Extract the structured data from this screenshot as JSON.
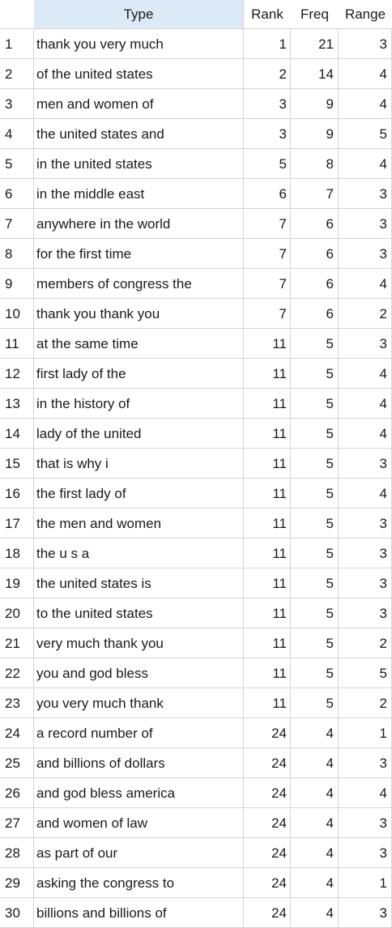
{
  "table": {
    "columns": {
      "index": "",
      "type": "Type",
      "rank": "Rank",
      "freq": "Freq",
      "range": "Range"
    },
    "sorted_header_bg": "#dce9f7",
    "rows": [
      {
        "n": "1",
        "type": "thank you very much",
        "rank": "1",
        "freq": "21",
        "range": "3"
      },
      {
        "n": "2",
        "type": "of the united states",
        "rank": "2",
        "freq": "14",
        "range": "4"
      },
      {
        "n": "3",
        "type": "men and women of",
        "rank": "3",
        "freq": "9",
        "range": "4"
      },
      {
        "n": "4",
        "type": "the united states and",
        "rank": "3",
        "freq": "9",
        "range": "5"
      },
      {
        "n": "5",
        "type": "in the united states",
        "rank": "5",
        "freq": "8",
        "range": "4"
      },
      {
        "n": "6",
        "type": "in the middle east",
        "rank": "6",
        "freq": "7",
        "range": "3"
      },
      {
        "n": "7",
        "type": "anywhere in the world",
        "rank": "7",
        "freq": "6",
        "range": "3"
      },
      {
        "n": "8",
        "type": "for the first time",
        "rank": "7",
        "freq": "6",
        "range": "3"
      },
      {
        "n": "9",
        "type": "members of congress the",
        "rank": "7",
        "freq": "6",
        "range": "4"
      },
      {
        "n": "10",
        "type": "thank you thank you",
        "rank": "7",
        "freq": "6",
        "range": "2"
      },
      {
        "n": "11",
        "type": "at the same time",
        "rank": "11",
        "freq": "5",
        "range": "3"
      },
      {
        "n": "12",
        "type": "first lady of the",
        "rank": "11",
        "freq": "5",
        "range": "4"
      },
      {
        "n": "13",
        "type": "in the history of",
        "rank": "11",
        "freq": "5",
        "range": "4"
      },
      {
        "n": "14",
        "type": "lady of the united",
        "rank": "11",
        "freq": "5",
        "range": "4"
      },
      {
        "n": "15",
        "type": "that is why i",
        "rank": "11",
        "freq": "5",
        "range": "3"
      },
      {
        "n": "16",
        "type": "the first lady of",
        "rank": "11",
        "freq": "5",
        "range": "4"
      },
      {
        "n": "17",
        "type": "the men and women",
        "rank": "11",
        "freq": "5",
        "range": "3"
      },
      {
        "n": "18",
        "type": "the u s a",
        "rank": "11",
        "freq": "5",
        "range": "3"
      },
      {
        "n": "19",
        "type": "the united states is",
        "rank": "11",
        "freq": "5",
        "range": "3"
      },
      {
        "n": "20",
        "type": "to the united states",
        "rank": "11",
        "freq": "5",
        "range": "3"
      },
      {
        "n": "21",
        "type": "very much thank you",
        "rank": "11",
        "freq": "5",
        "range": "2"
      },
      {
        "n": "22",
        "type": "you and god bless",
        "rank": "11",
        "freq": "5",
        "range": "5"
      },
      {
        "n": "23",
        "type": "you very much thank",
        "rank": "11",
        "freq": "5",
        "range": "2"
      },
      {
        "n": "24",
        "type": "a record number of",
        "rank": "24",
        "freq": "4",
        "range": "1"
      },
      {
        "n": "25",
        "type": "and billions of dollars",
        "rank": "24",
        "freq": "4",
        "range": "3"
      },
      {
        "n": "26",
        "type": "and god bless america",
        "rank": "24",
        "freq": "4",
        "range": "4"
      },
      {
        "n": "27",
        "type": "and women of law",
        "rank": "24",
        "freq": "4",
        "range": "3"
      },
      {
        "n": "28",
        "type": "as part of our",
        "rank": "24",
        "freq": "4",
        "range": "3"
      },
      {
        "n": "29",
        "type": "asking the congress to",
        "rank": "24",
        "freq": "4",
        "range": "1"
      },
      {
        "n": "30",
        "type": "billions and billions of",
        "rank": "24",
        "freq": "4",
        "range": "3"
      }
    ]
  }
}
